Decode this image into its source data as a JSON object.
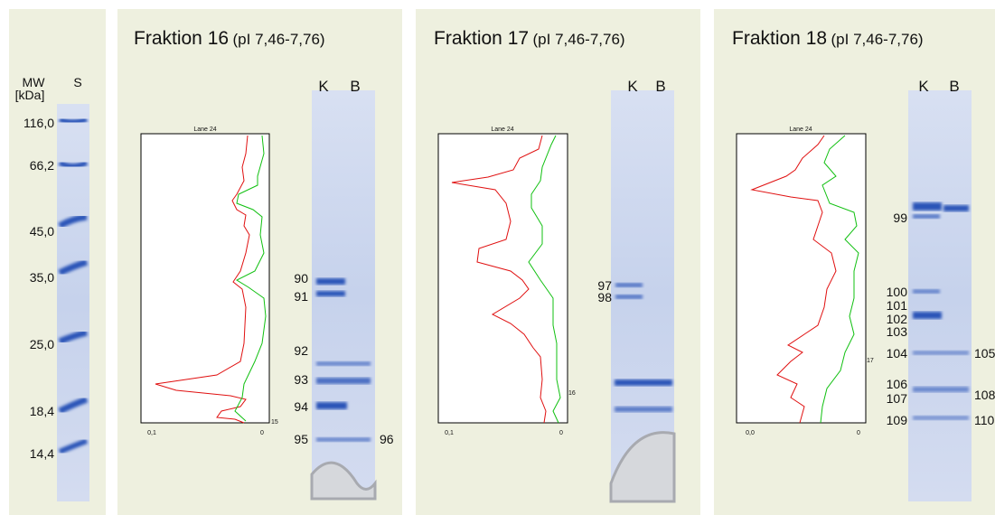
{
  "ladder": {
    "header": "MW",
    "unit": "[kDa]",
    "lane": "S",
    "markers": [
      "116,0",
      "66,2",
      "45,0",
      "35,0",
      "25,0",
      "18,4",
      "14,4"
    ]
  },
  "panels": [
    {
      "title": "Fraktion 16",
      "subtitle": "(pI 7,46-7,76)",
      "lanes": [
        "K",
        "B"
      ],
      "plot": {
        "label": "Lane 24",
        "x_left": "0,1",
        "x_right": "0",
        "tick": "15"
      },
      "spots_left": [
        "90",
        "91",
        "92",
        "93",
        "94",
        "95"
      ],
      "spots_right": [
        "96"
      ]
    },
    {
      "title": "Fraktion 17",
      "subtitle": "(pI 7,46-7,76)",
      "lanes": [
        "K",
        "B"
      ],
      "plot": {
        "label": "Lane 24",
        "x_left": "0,1",
        "x_right": "0",
        "tick": "16"
      },
      "spots_left": [
        "97",
        "98"
      ],
      "spots_right": []
    },
    {
      "title": "Fraktion 18",
      "subtitle": "(pI 7,46-7,76)",
      "lanes": [
        "K",
        "B"
      ],
      "plot": {
        "label": "Lane 24",
        "x_left": "0,0",
        "x_right": "0",
        "tick": "17"
      },
      "spots_left": [
        "99",
        "100",
        "101",
        "102",
        "103",
        "104",
        "106",
        "107",
        "109"
      ],
      "spots_right": [
        "105",
        "108",
        "110"
      ]
    }
  ]
}
